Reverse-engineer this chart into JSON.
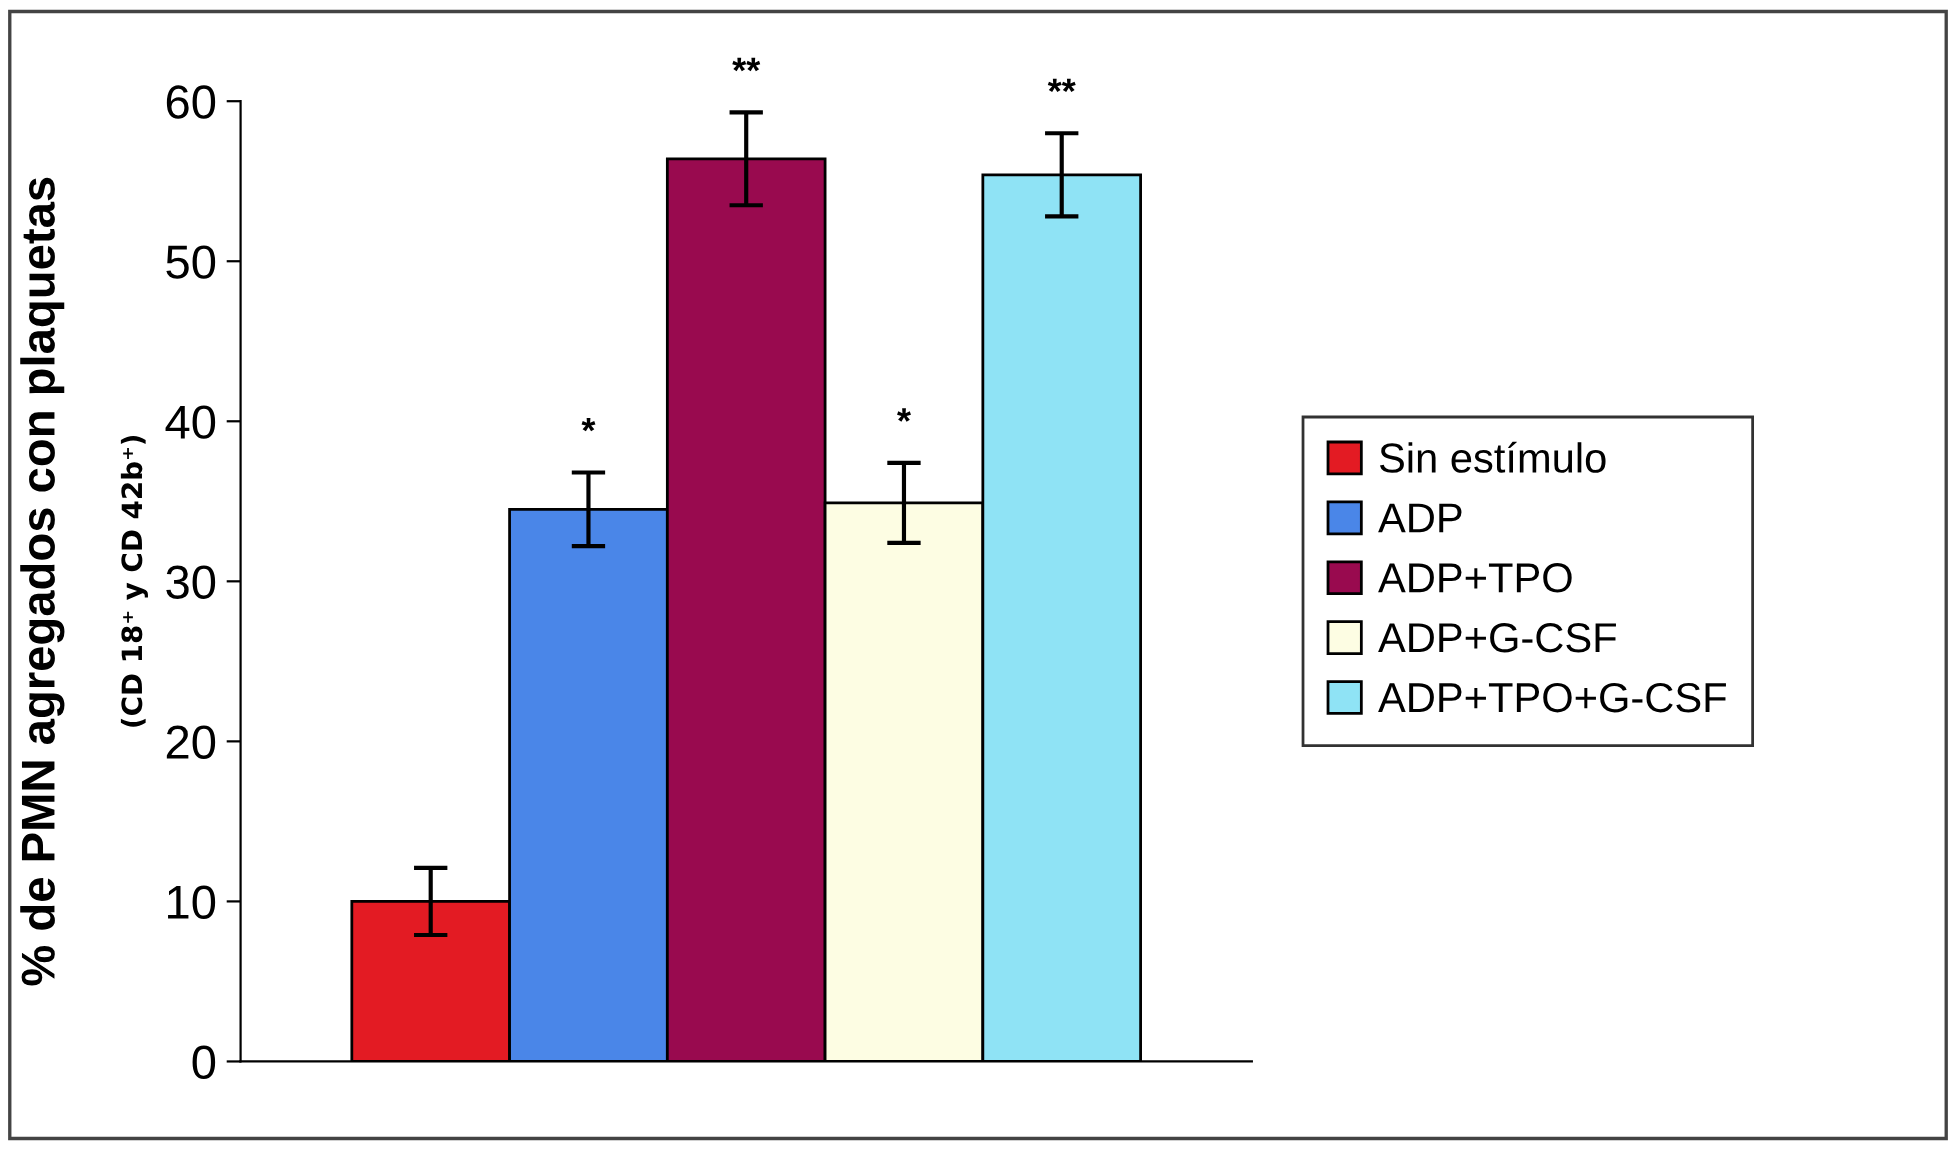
{
  "chart_data": {
    "type": "bar",
    "ylabel": "% de PMN agregados con plaquetas\n(CD 18⁺ y CD 42b⁺)",
    "categories": [
      null
    ],
    "series": [
      {
        "name": "Sin estímulo",
        "color": "#e31b23",
        "values": [
          10
        ],
        "errors": [
          2.1
        ],
        "value_labels": [
          null
        ]
      },
      {
        "name": "ADP",
        "color": "#4a86e8",
        "values": [
          34.5
        ],
        "errors": [
          2.3
        ],
        "value_labels": [
          "*"
        ]
      },
      {
        "name": "ADP+TPO",
        "color": "#990a4f",
        "values": [
          56.4
        ],
        "errors": [
          2.9
        ],
        "value_labels": [
          "**"
        ]
      },
      {
        "name": "ADP+G-CSF",
        "color": "#fdfde3",
        "values": [
          34.9
        ],
        "errors": [
          2.5
        ],
        "value_labels": [
          "*"
        ]
      },
      {
        "name": "ADP+TPO+G-CSF",
        "color": "#8fe3f5",
        "values": [
          55.4
        ],
        "errors": [
          2.6
        ],
        "value_labels": [
          "**"
        ]
      }
    ],
    "ylim": [
      0,
      60
    ],
    "yticks": [
      0,
      10,
      20,
      30,
      40,
      50,
      60
    ],
    "grid": false,
    "legend": "right"
  }
}
